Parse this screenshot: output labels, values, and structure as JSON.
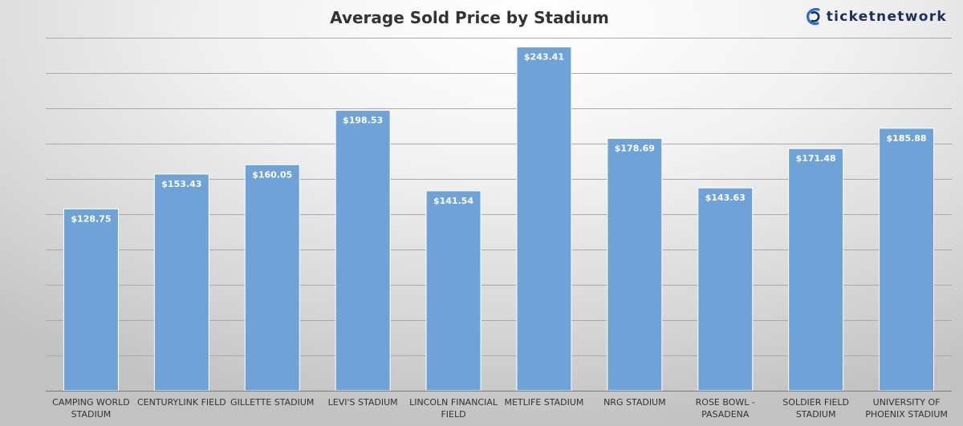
{
  "brand": {
    "name": "ticketnetwork",
    "accent": "#2a6fd6",
    "text_color": "#1c2f5c"
  },
  "colors": {
    "bar": "#6fa3d8",
    "bar_edge": "#ffffff",
    "grid": "#a9a9a9",
    "axis": "#7a7a7a",
    "title": "#333333"
  },
  "chart_data": {
    "type": "bar",
    "title": "Average Sold Price by Stadium",
    "xlabel": "",
    "ylabel": "",
    "ylim": [
      0,
      250
    ],
    "grid_step": 25,
    "categories": [
      [
        "CAMPING WORLD",
        "STADIUM"
      ],
      [
        "CENTURYLINK FIELD"
      ],
      [
        "GILLETTE STADIUM"
      ],
      [
        "LEVI'S STADIUM"
      ],
      [
        "LINCOLN FINANCIAL",
        "FIELD"
      ],
      [
        "METLIFE STADIUM"
      ],
      [
        "NRG STADIUM"
      ],
      [
        "ROSE BOWL -",
        "PASADENA"
      ],
      [
        "SOLDIER FIELD",
        "STADIUM"
      ],
      [
        "UNIVERSITY OF",
        "PHOENIX STADIUM"
      ]
    ],
    "values": [
      128.75,
      153.43,
      160.05,
      198.53,
      141.54,
      243.41,
      178.69,
      143.63,
      171.48,
      185.88
    ],
    "labels": [
      "$128.75",
      "$153.43",
      "$160.05",
      "$198.53",
      "$141.54",
      "$243.41",
      "$178.69",
      "$143.63",
      "$171.48",
      "$185.88"
    ]
  }
}
